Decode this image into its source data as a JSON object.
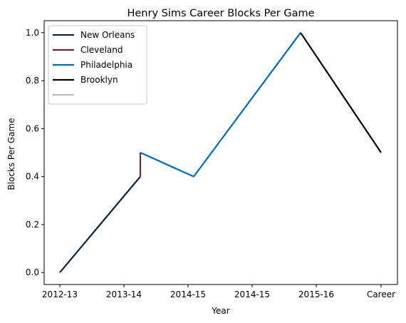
{
  "chart_data": {
    "type": "line",
    "title": "Henry Sims Career Blocks Per Game",
    "xlabel": "Year",
    "ylabel": "Blocks Per Game",
    "x_tick_labels": [
      "2012-13",
      "2013-14",
      "2014-15",
      "2014-15",
      "2015-16",
      "Career"
    ],
    "ylim": [
      -0.05,
      1.05
    ],
    "y_ticks": [
      0.0,
      0.2,
      0.4,
      0.6,
      0.8,
      1.0
    ],
    "y_tick_labels": [
      "0.0",
      "0.2",
      "0.4",
      "0.6",
      "0.8",
      "1.0"
    ],
    "grid": false,
    "legend_position": "top-left",
    "series": [
      {
        "name": "New Orleans",
        "color": "#0c2340",
        "points": [
          {
            "x": "2012-13",
            "y": 0.0
          },
          {
            "x": "2013-14",
            "y": 0.4
          }
        ]
      },
      {
        "name": "Cleveland",
        "color": "#6f263d",
        "points": [
          {
            "x": "2013-14",
            "y": 0.4
          },
          {
            "x": "2013-14",
            "y": 0.5
          }
        ]
      },
      {
        "name": "Philadelphia",
        "color": "#006bb6",
        "points": [
          {
            "x": "2013-14",
            "y": 0.5
          },
          {
            "x": "2014-15",
            "y": 0.4
          },
          {
            "x": "2015-16",
            "y": 1.0
          }
        ]
      },
      {
        "name": "Brooklyn",
        "color": "#000000",
        "points": [
          {
            "x": "2015-16",
            "y": 1.0
          },
          {
            "x": "Career",
            "y": 0.5
          }
        ]
      },
      {
        "name": "",
        "color": "#bbbbbb",
        "points": []
      }
    ]
  }
}
